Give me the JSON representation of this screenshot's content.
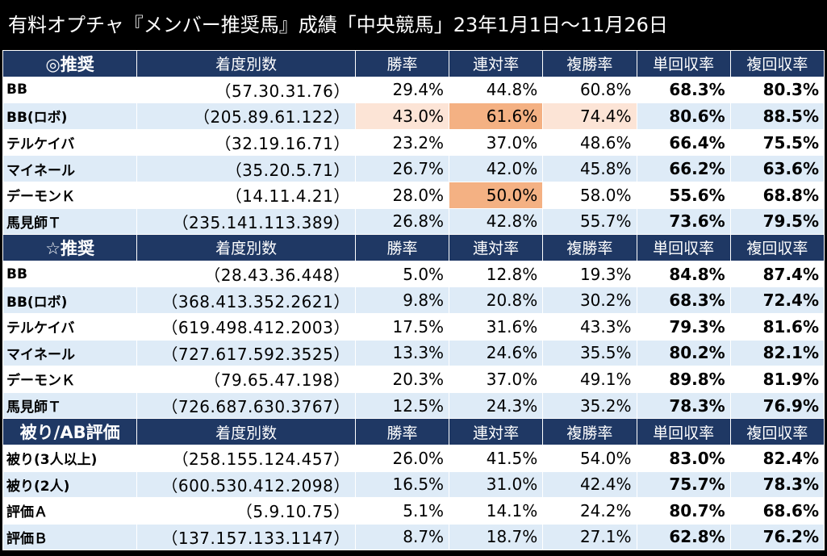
{
  "title": "有料オプチャ『メンバー推奨馬』成績「中央競馬」23年1月1日〜11月26日",
  "colors": {
    "header_bg": "#1f3864",
    "row_alt": "#deebf7",
    "highlight_light": "#fce4d6",
    "highlight_orange": "#f4b183"
  },
  "sections": [
    {
      "header": [
        "◎推奨",
        "着度別数",
        "勝率",
        "連対率",
        "複勝率",
        "単回収率",
        "複回収率"
      ],
      "rows": [
        [
          "BB",
          "（57.30.31.76）",
          "29.4%",
          "44.8%",
          "60.8%",
          "68.3%",
          "80.3%"
        ],
        [
          "BB(ロボ)",
          "（205.89.61.122）",
          "43.0%",
          "61.6%",
          "74.4%",
          "80.6%",
          "88.5%"
        ],
        [
          "テルケイバ",
          "（32.19.16.71）",
          "23.2%",
          "37.0%",
          "48.6%",
          "66.4%",
          "75.5%"
        ],
        [
          "マイネール",
          "（35.20.5.71）",
          "26.7%",
          "42.0%",
          "45.8%",
          "66.2%",
          "63.6%"
        ],
        [
          "デーモンＫ",
          "（14.11.4.21）",
          "28.0%",
          "50.0%",
          "58.0%",
          "55.6%",
          "68.8%"
        ],
        [
          "馬見師Ｔ",
          "（235.141.113.389）",
          "26.8%",
          "42.8%",
          "55.7%",
          "73.6%",
          "79.5%"
        ]
      ]
    },
    {
      "header": [
        "☆推奨",
        "着度別数",
        "勝率",
        "連対率",
        "複勝率",
        "単回収率",
        "複回収率"
      ],
      "rows": [
        [
          "BB",
          "（28.43.36.448）",
          "5.0%",
          "12.8%",
          "19.3%",
          "84.8%",
          "87.4%"
        ],
        [
          "BB(ロボ)",
          "（368.413.352.2621）",
          "9.8%",
          "20.8%",
          "30.2%",
          "68.3%",
          "72.4%"
        ],
        [
          "テルケイバ",
          "（619.498.412.2003）",
          "17.5%",
          "31.6%",
          "43.3%",
          "79.3%",
          "81.6%"
        ],
        [
          "マイネール",
          "（727.617.592.3525）",
          "13.3%",
          "24.6%",
          "35.5%",
          "80.2%",
          "82.1%"
        ],
        [
          "デーモンＫ",
          "（79.65.47.198）",
          "20.3%",
          "37.0%",
          "49.1%",
          "89.8%",
          "81.9%"
        ],
        [
          "馬見師Ｔ",
          "（726.687.630.3767）",
          "12.5%",
          "24.3%",
          "35.2%",
          "78.3%",
          "76.9%"
        ]
      ]
    },
    {
      "header": [
        "被り/AB評価",
        "着度別数",
        "勝率",
        "連対率",
        "複勝率",
        "単回収率",
        "複回収率"
      ],
      "rows": [
        [
          "被り(3人以上)",
          "（258.155.124.457）",
          "26.0%",
          "41.5%",
          "54.0%",
          "83.0%",
          "82.4%"
        ],
        [
          "被り(2人)",
          "（600.530.412.2098）",
          "16.5%",
          "31.0%",
          "42.4%",
          "75.7%",
          "78.3%"
        ],
        [
          "評価Ａ",
          "（5.9.10.75）",
          "5.1%",
          "14.1%",
          "24.2%",
          "80.7%",
          "68.6%"
        ],
        [
          "評価Ｂ",
          "（137.157.133.1147）",
          "8.7%",
          "18.7%",
          "27.1%",
          "62.8%",
          "76.2%"
        ]
      ]
    }
  ]
}
